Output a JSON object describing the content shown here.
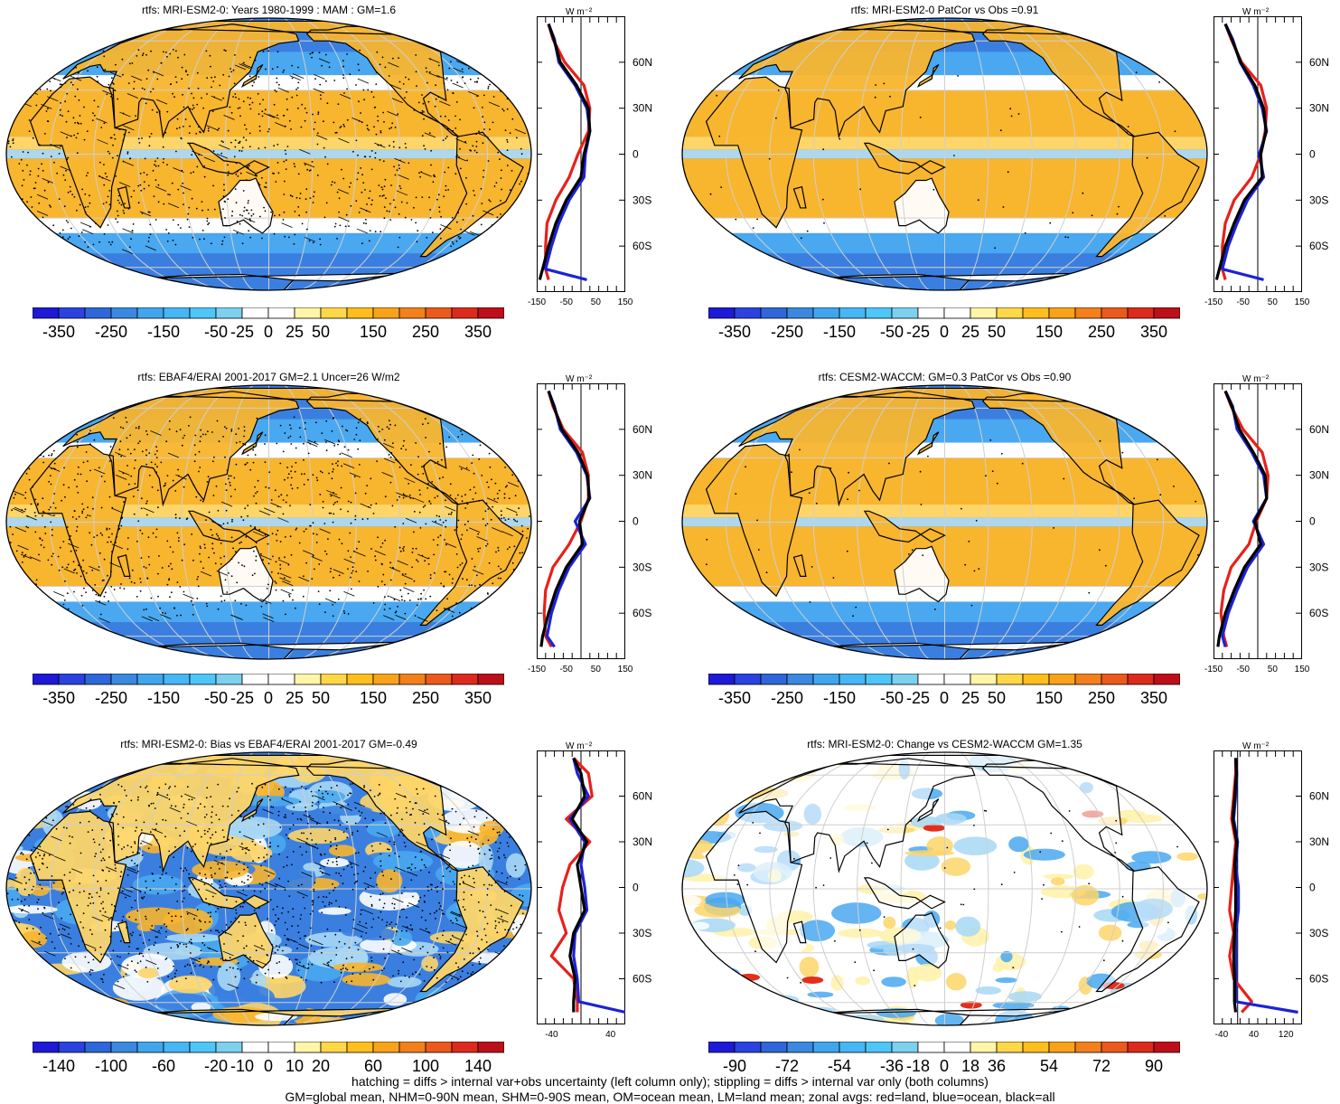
{
  "colorbars": {
    "ramp": [
      "#1e19d6",
      "#2a42e0",
      "#2f66d9",
      "#3a88e0",
      "#3fa6ee",
      "#46b6f4",
      "#4ec6f8",
      "#7dd0ee",
      "#ffffff",
      "#ffffff",
      "#fff5a8",
      "#ffd84a",
      "#ffbe1e",
      "#f9a31a",
      "#f3801c",
      "#ea5a1c",
      "#dc2a1c",
      "#bd0f1a"
    ],
    "swatches": {
      "blue_strong": "#3a7fe0",
      "blue_mid": "#49a8f0",
      "blue_light": "#a7d8f5",
      "orange": "#f8b52e",
      "orange_light": "#fdd568",
      "yellow_light": "#fff1a8",
      "red": "#e1301c"
    },
    "standard_labels": [
      "-350",
      "-250",
      "-150",
      "-50",
      "-25",
      "0",
      "25",
      "50",
      "150",
      "250",
      "350"
    ],
    "bias_labels": [
      "-140",
      "-100",
      "-60",
      "-20",
      "-10",
      "0",
      "10",
      "20",
      "60",
      "100",
      "140"
    ],
    "change_labels": [
      "-90",
      "-72",
      "-54",
      "-36",
      "-18",
      "0",
      "18",
      "36",
      "54",
      "72",
      "90"
    ]
  },
  "zonal": {
    "unit": "W m⁻²",
    "lat_labels": [
      "60N",
      "30N",
      "0",
      "30S",
      "60S"
    ],
    "legend_colors": {
      "land": "#e8201a",
      "ocean": "#1d22d6",
      "all": "#000000"
    },
    "standard_ticks": [
      "-150",
      "-50",
      "50",
      "150"
    ],
    "bias_ticks": [
      "-40",
      "40"
    ],
    "change_ticks": [
      "-40",
      "40",
      "120"
    ]
  },
  "panels": [
    {
      "id": "p1",
      "title": "rtfs: MRI-ESM2-0: Years 1980-1999 : MAM : GM=1.6",
      "stipple": true,
      "hatch": true,
      "mode": "standard"
    },
    {
      "id": "p2",
      "title": "rtfs: MRI-ESM2-0 PatCor vs Obs =0.91",
      "stipple": false,
      "hatch": false,
      "mode": "standard"
    },
    {
      "id": "p3",
      "title": "rtfs: EBAF4/ERAI 2001-2017 GM=2.1 Uncer=26 W/m2",
      "stipple": true,
      "hatch": true,
      "mode": "standard"
    },
    {
      "id": "p4",
      "title": "rtfs: CESM2-WACCM: GM=0.3 PatCor vs Obs =0.90",
      "stipple": false,
      "hatch": false,
      "mode": "standard"
    },
    {
      "id": "p5",
      "title": "rtfs: MRI-ESM2-0: Bias vs EBAF4/ERAI 2001-2017 GM=-0.49",
      "stipple": true,
      "hatch": true,
      "mode": "bias"
    },
    {
      "id": "p6",
      "title": "rtfs: MRI-ESM2-0: Change vs CESM2-WACCM GM=1.35",
      "stipple": false,
      "hatch": false,
      "mode": "change"
    }
  ],
  "chart_data": [
    {
      "type": "heatmap",
      "title": "rtfs: MRI-ESM2-0: Years 1980-1999 : MAM : GM=1.6",
      "colorbar_ticks": [
        -350,
        -250,
        -150,
        -50,
        -25,
        0,
        25,
        50,
        150,
        250,
        350
      ],
      "zonal_profile": {
        "xlim": [
          -150,
          150
        ],
        "xticks": [
          -150,
          -50,
          50,
          150
        ],
        "lat": [
          85,
          75,
          60,
          45,
          30,
          15,
          0,
          -15,
          -30,
          -45,
          -60,
          -75,
          -82
        ],
        "series": [
          {
            "name": "land",
            "values": [
              -110,
              -95,
              -55,
              10,
              30,
              25,
              -10,
              -40,
              -85,
              -115,
              -120,
              -120,
              -110
            ]
          },
          {
            "name": "ocean",
            "values": [
              -110,
              -90,
              -75,
              -20,
              20,
              30,
              15,
              10,
              -40,
              -75,
              -100,
              -120,
              20
            ]
          },
          {
            "name": "all",
            "values": [
              -110,
              -92,
              -70,
              -15,
              25,
              30,
              10,
              0,
              -50,
              -85,
              -110,
              -130,
              -140
            ]
          }
        ]
      }
    },
    {
      "type": "heatmap",
      "title": "rtfs: MRI-ESM2-0 PatCor vs Obs =0.91",
      "colorbar_ticks": [
        -350,
        -250,
        -150,
        -50,
        -25,
        0,
        25,
        50,
        150,
        250,
        350
      ],
      "zonal_profile": {
        "xlim": [
          -150,
          150
        ],
        "xticks": [
          -150,
          -50,
          50,
          150
        ],
        "lat": [
          85,
          75,
          60,
          45,
          30,
          15,
          0,
          -15,
          -30,
          -45,
          -60,
          -75,
          -82
        ],
        "series": [
          {
            "name": "land",
            "values": [
              -110,
              -90,
              -55,
              10,
              30,
              25,
              10,
              -20,
              -80,
              -110,
              -120,
              -120,
              -110
            ]
          },
          {
            "name": "ocean",
            "values": [
              -110,
              -85,
              -60,
              -15,
              15,
              30,
              5,
              20,
              -35,
              -70,
              -100,
              -120,
              20
            ]
          },
          {
            "name": "all",
            "values": [
              -110,
              -88,
              -58,
              -10,
              20,
              28,
              10,
              15,
              -45,
              -80,
              -110,
              -130,
              -140
            ]
          }
        ]
      }
    },
    {
      "type": "heatmap",
      "title": "rtfs: EBAF4/ERAI 2001-2017 GM=2.1 Uncer=26 W/m2",
      "colorbar_ticks": [
        -350,
        -250,
        -150,
        -50,
        -25,
        0,
        25,
        50,
        150,
        250,
        350
      ],
      "zonal_profile": {
        "xlim": [
          -150,
          150
        ],
        "xticks": [
          -150,
          -50,
          50,
          150
        ],
        "lat": [
          85,
          75,
          60,
          45,
          30,
          15,
          0,
          -15,
          -30,
          -45,
          -60,
          -75,
          -82
        ],
        "series": [
          {
            "name": "land",
            "values": [
              -110,
              -95,
              -60,
              5,
              25,
              25,
              0,
              -40,
              -95,
              -120,
              -125,
              -120,
              -100
            ]
          },
          {
            "name": "ocean",
            "values": [
              -110,
              -90,
              -70,
              -15,
              20,
              30,
              -20,
              15,
              -40,
              -75,
              -100,
              -115,
              -90
            ]
          },
          {
            "name": "all",
            "values": [
              -110,
              -92,
              -65,
              -10,
              22,
              28,
              -5,
              5,
              -50,
              -85,
              -110,
              -130,
              -135
            ]
          }
        ]
      }
    },
    {
      "type": "heatmap",
      "title": "rtfs: CESM2-WACCM: GM=0.3 PatCor vs Obs =0.90",
      "colorbar_ticks": [
        -350,
        -250,
        -150,
        -50,
        -25,
        0,
        25,
        50,
        150,
        250,
        350
      ],
      "zonal_profile": {
        "xlim": [
          -150,
          150
        ],
        "xticks": [
          -150,
          -50,
          50,
          150
        ],
        "lat": [
          85,
          75,
          60,
          45,
          30,
          15,
          0,
          -15,
          -30,
          -45,
          -60,
          -75,
          -82
        ],
        "series": [
          {
            "name": "land",
            "values": [
              -110,
              -90,
              -50,
              15,
              35,
              30,
              -5,
              -30,
              -90,
              -115,
              -125,
              -115,
              -105
            ]
          },
          {
            "name": "ocean",
            "values": [
              -110,
              -85,
              -70,
              -20,
              20,
              30,
              -15,
              20,
              -35,
              -70,
              -100,
              -120,
              -110
            ]
          },
          {
            "name": "all",
            "values": [
              -110,
              -88,
              -62,
              -15,
              25,
              30,
              -10,
              10,
              -45,
              -80,
              -110,
              -130,
              -135
            ]
          }
        ]
      }
    },
    {
      "type": "heatmap",
      "title": "rtfs: MRI-ESM2-0: Bias vs EBAF4/ERAI 2001-2017 GM=-0.49",
      "colorbar_ticks": [
        -140,
        -100,
        -60,
        -20,
        -10,
        0,
        10,
        20,
        60,
        100,
        140
      ],
      "zonal_profile": {
        "xlim": [
          -60,
          60
        ],
        "xticks": [
          -40,
          40
        ],
        "lat": [
          85,
          75,
          60,
          45,
          30,
          15,
          0,
          -15,
          -30,
          -45,
          -60,
          -75,
          -82
        ],
        "series": [
          {
            "name": "land",
            "values": [
              -10,
              10,
              15,
              -20,
              12,
              -15,
              -25,
              -30,
              -20,
              -40,
              -10,
              -5,
              -5
            ]
          },
          {
            "name": "ocean",
            "values": [
              -10,
              -5,
              10,
              -15,
              5,
              0,
              5,
              8,
              -8,
              -10,
              -5,
              -3,
              60
            ]
          },
          {
            "name": "all",
            "values": [
              -10,
              0,
              5,
              -12,
              8,
              -5,
              0,
              5,
              -10,
              -15,
              -8,
              -10,
              -10
            ]
          }
        ]
      }
    },
    {
      "type": "heatmap",
      "title": "rtfs: MRI-ESM2-0: Change vs CESM2-WACCM GM=1.35",
      "colorbar_ticks": [
        -90,
        -72,
        -54,
        -36,
        -18,
        0,
        18,
        36,
        54,
        72,
        90
      ],
      "zonal_profile": {
        "xlim": [
          -60,
          160
        ],
        "xticks": [
          -40,
          40,
          120
        ],
        "lat": [
          85,
          75,
          60,
          45,
          30,
          15,
          0,
          -15,
          -30,
          -45,
          -60,
          -75,
          -82
        ],
        "series": [
          {
            "name": "land",
            "values": [
              -5,
              -5,
              -10,
              -15,
              -5,
              -10,
              -15,
              -20,
              -10,
              -20,
              -10,
              35,
              10
            ]
          },
          {
            "name": "ocean",
            "values": [
              -5,
              -2,
              -5,
              -10,
              0,
              -5,
              2,
              2,
              -5,
              -5,
              -5,
              -5,
              150
            ]
          },
          {
            "name": "all",
            "values": [
              -5,
              -3,
              -7,
              -12,
              -2,
              -7,
              -5,
              -5,
              -8,
              -10,
              -8,
              -8,
              -5
            ]
          }
        ]
      }
    }
  ],
  "footer": {
    "line1": "hatching = diffs > internal var+obs uncertainty (left column only); stippling = diffs > internal var only (both columns)",
    "line2": "GM=global mean, NHM=0-90N mean, SHM=0-90S mean, OM=ocean mean, LM=land mean; zonal avgs: red=land, blue=ocean, black=all"
  }
}
